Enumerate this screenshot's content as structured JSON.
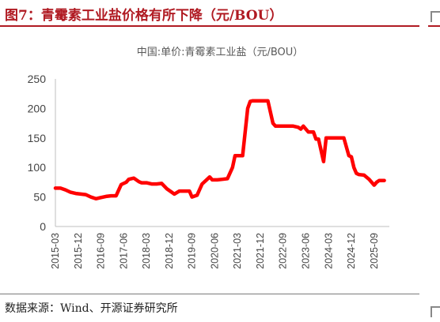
{
  "header": {
    "title": "图7：青霉素工业盐价格有所下降（元/BOU）"
  },
  "footer": {
    "source": "数据来源：Wind、开源证券研究所"
  },
  "chart_data": {
    "type": "line",
    "title": "中国:单价:青霉素工业盐（元/BOU）",
    "xlabel": "",
    "ylabel": "",
    "ylim": [
      0,
      250
    ],
    "yticks": [
      0,
      50,
      100,
      150,
      200,
      250
    ],
    "xlim": [
      "2015-03",
      "2026-03"
    ],
    "xticks": [
      "2015-03",
      "2015-12",
      "2016-09",
      "2017-06",
      "2018-03",
      "2018-12",
      "2019-09",
      "2020-06",
      "2021-03",
      "2021-12",
      "2022-09",
      "2023-06",
      "2024-03",
      "2024-12",
      "2025-09"
    ],
    "grid": false,
    "legend": "none",
    "colors": {
      "line": "#ff0000",
      "axis": "#bfbfbf",
      "title": "#b01a22"
    },
    "series": [
      {
        "x": [
          "2015-03",
          "2015-05",
          "2015-07",
          "2015-09",
          "2015-11",
          "2016-01",
          "2016-03",
          "2016-05",
          "2016-07",
          "2016-09",
          "2016-11",
          "2017-01",
          "2017-03",
          "2017-05",
          "2017-07",
          "2017-08",
          "2017-10",
          "2017-12",
          "2018-01",
          "2018-03",
          "2018-05",
          "2018-07",
          "2018-09",
          "2018-11",
          "2019-01",
          "2019-02",
          "2019-04",
          "2019-06",
          "2019-08",
          "2019-09",
          "2019-11",
          "2020-01",
          "2020-03",
          "2020-04",
          "2020-05",
          "2020-06",
          "2020-07",
          "2020-09",
          "2020-11",
          "2021-01",
          "2021-02",
          "2021-03",
          "2021-05",
          "2021-07",
          "2021-08",
          "2021-09",
          "2021-11",
          "2022-01",
          "2022-03",
          "2022-05",
          "2022-06",
          "2022-07",
          "2022-08",
          "2022-09",
          "2022-11",
          "2023-01",
          "2023-03",
          "2023-04",
          "2023-05",
          "2023-07",
          "2023-09",
          "2023-10",
          "2023-11",
          "2024-01",
          "2024-02",
          "2024-03",
          "2024-05",
          "2024-07",
          "2024-09",
          "2024-11",
          "2024-12",
          "2025-01",
          "2025-02",
          "2025-03",
          "2025-05",
          "2025-07",
          "2025-09",
          "2025-10",
          "2025-11",
          "2025-12",
          "2026-01"
        ],
        "values": [
          65,
          65,
          62,
          58,
          56,
          55,
          54,
          50,
          47,
          49,
          51,
          52,
          52,
          71,
          75,
          80,
          82,
          76,
          74,
          74,
          72,
          72,
          73,
          64,
          58,
          55,
          60,
          60,
          60,
          50,
          53,
          72,
          80,
          84,
          79,
          79,
          79,
          80,
          81,
          100,
          120,
          120,
          120,
          200,
          212,
          213,
          213,
          213,
          213,
          175,
          170,
          170,
          170,
          170,
          170,
          170,
          168,
          165,
          170,
          160,
          160,
          148,
          148,
          110,
          150,
          150,
          150,
          150,
          150,
          120,
          118,
          100,
          90,
          88,
          87,
          80,
          70,
          75,
          78,
          78,
          78
        ]
      }
    ]
  }
}
